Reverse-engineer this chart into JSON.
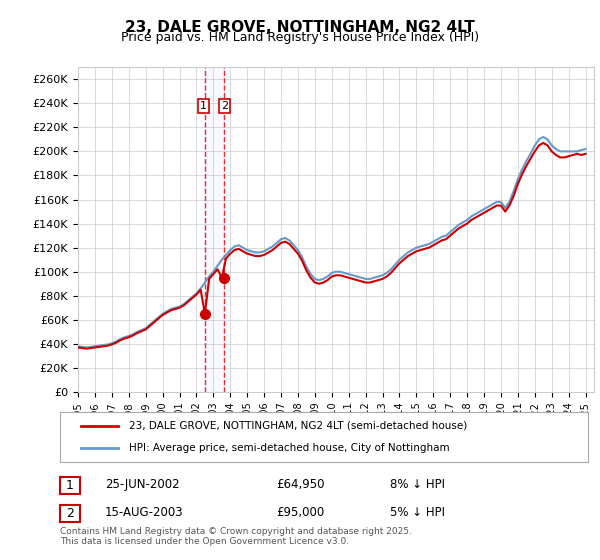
{
  "title": "23, DALE GROVE, NOTTINGHAM, NG2 4LT",
  "subtitle": "Price paid vs. HM Land Registry's House Price Index (HPI)",
  "ylabel_ticks": [
    "£0",
    "£20K",
    "£40K",
    "£60K",
    "£80K",
    "£100K",
    "£120K",
    "£140K",
    "£160K",
    "£180K",
    "£200K",
    "£220K",
    "£240K",
    "£260K"
  ],
  "ylim": [
    0,
    270000
  ],
  "ytick_vals": [
    0,
    20000,
    40000,
    60000,
    80000,
    100000,
    120000,
    140000,
    160000,
    180000,
    200000,
    220000,
    240000,
    260000
  ],
  "x_start_year": 1995,
  "x_end_year": 2025,
  "legend_line1": "23, DALE GROVE, NOTTINGHAM, NG2 4LT (semi-detached house)",
  "legend_line2": "HPI: Average price, semi-detached house, City of Nottingham",
  "sale1_label": "1",
  "sale1_date": "25-JUN-2002",
  "sale1_price": "£64,950",
  "sale1_hpi": "8% ↓ HPI",
  "sale2_label": "2",
  "sale2_date": "15-AUG-2003",
  "sale2_price": "£95,000",
  "sale2_hpi": "5% ↓ HPI",
  "sale1_year": 2002.48,
  "sale1_value": 64950,
  "sale2_year": 2003.62,
  "sale2_value": 95000,
  "vline1_year": 2002.48,
  "vline2_year": 2003.62,
  "line_color_red": "#cc0000",
  "line_color_blue": "#6699cc",
  "bg_color": "#ffffff",
  "grid_color": "#cccccc",
  "footer": "Contains HM Land Registry data © Crown copyright and database right 2025.\nThis data is licensed under the Open Government Licence v3.0.",
  "hpi_data_x": [
    1995.0,
    1995.25,
    1995.5,
    1995.75,
    1996.0,
    1996.25,
    1996.5,
    1996.75,
    1997.0,
    1997.25,
    1997.5,
    1997.75,
    1998.0,
    1998.25,
    1998.5,
    1998.75,
    1999.0,
    1999.25,
    1999.5,
    1999.75,
    2000.0,
    2000.25,
    2000.5,
    2000.75,
    2001.0,
    2001.25,
    2001.5,
    2001.75,
    2002.0,
    2002.25,
    2002.5,
    2002.75,
    2003.0,
    2003.25,
    2003.5,
    2003.75,
    2004.0,
    2004.25,
    2004.5,
    2004.75,
    2005.0,
    2005.25,
    2005.5,
    2005.75,
    2006.0,
    2006.25,
    2006.5,
    2006.75,
    2007.0,
    2007.25,
    2007.5,
    2007.75,
    2008.0,
    2008.25,
    2008.5,
    2008.75,
    2009.0,
    2009.25,
    2009.5,
    2009.75,
    2010.0,
    2010.25,
    2010.5,
    2010.75,
    2011.0,
    2011.25,
    2011.5,
    2011.75,
    2012.0,
    2012.25,
    2012.5,
    2012.75,
    2013.0,
    2013.25,
    2013.5,
    2013.75,
    2014.0,
    2014.25,
    2014.5,
    2014.75,
    2015.0,
    2015.25,
    2015.5,
    2015.75,
    2016.0,
    2016.25,
    2016.5,
    2016.75,
    2017.0,
    2017.25,
    2017.5,
    2017.75,
    2018.0,
    2018.25,
    2018.5,
    2018.75,
    2019.0,
    2019.25,
    2019.5,
    2019.75,
    2020.0,
    2020.25,
    2020.5,
    2020.75,
    2021.0,
    2021.25,
    2021.5,
    2021.75,
    2022.0,
    2022.25,
    2022.5,
    2022.75,
    2023.0,
    2023.25,
    2023.5,
    2023.75,
    2024.0,
    2024.25,
    2024.5,
    2024.75,
    2025.0
  ],
  "hpi_data_y": [
    38000,
    37500,
    37000,
    37500,
    38000,
    38500,
    39000,
    39500,
    40500,
    42000,
    44000,
    45500,
    46500,
    48000,
    50000,
    51500,
    53000,
    56000,
    59000,
    62000,
    65000,
    67000,
    69000,
    70000,
    71000,
    73000,
    76000,
    79000,
    82000,
    86000,
    91000,
    96000,
    100000,
    105000,
    110000,
    114000,
    118000,
    121000,
    122000,
    120000,
    118000,
    117000,
    116000,
    116000,
    117000,
    119000,
    121000,
    124000,
    127000,
    128000,
    126000,
    122000,
    118000,
    112000,
    104000,
    98000,
    94000,
    93000,
    94000,
    96000,
    99000,
    100000,
    100000,
    99000,
    98000,
    97000,
    96000,
    95000,
    94000,
    94000,
    95000,
    96000,
    97000,
    99000,
    102000,
    106000,
    110000,
    113000,
    116000,
    118000,
    120000,
    121000,
    122000,
    123000,
    125000,
    127000,
    129000,
    130000,
    133000,
    136000,
    139000,
    141000,
    143000,
    146000,
    148000,
    150000,
    152000,
    154000,
    156000,
    158000,
    158000,
    153000,
    158000,
    167000,
    177000,
    185000,
    192000,
    198000,
    205000,
    210000,
    212000,
    210000,
    205000,
    202000,
    200000,
    200000,
    200000,
    200000,
    200000,
    201000,
    202000
  ],
  "price_data_x": [
    1995.0,
    1995.25,
    1995.5,
    1995.75,
    1996.0,
    1996.25,
    1996.5,
    1996.75,
    1997.0,
    1997.25,
    1997.5,
    1997.75,
    1998.0,
    1998.25,
    1998.5,
    1998.75,
    1999.0,
    1999.25,
    1999.5,
    1999.75,
    2000.0,
    2000.25,
    2000.5,
    2000.75,
    2001.0,
    2001.25,
    2001.5,
    2001.75,
    2002.0,
    2002.25,
    2002.5,
    2002.75,
    2003.0,
    2003.25,
    2003.5,
    2003.75,
    2004.0,
    2004.25,
    2004.5,
    2004.75,
    2005.0,
    2005.25,
    2005.5,
    2005.75,
    2006.0,
    2006.25,
    2006.5,
    2006.75,
    2007.0,
    2007.25,
    2007.5,
    2007.75,
    2008.0,
    2008.25,
    2008.5,
    2008.75,
    2009.0,
    2009.25,
    2009.5,
    2009.75,
    2010.0,
    2010.25,
    2010.5,
    2010.75,
    2011.0,
    2011.25,
    2011.5,
    2011.75,
    2012.0,
    2012.25,
    2012.5,
    2012.75,
    2013.0,
    2013.25,
    2013.5,
    2013.75,
    2014.0,
    2014.25,
    2014.5,
    2014.75,
    2015.0,
    2015.25,
    2015.5,
    2015.75,
    2016.0,
    2016.25,
    2016.5,
    2016.75,
    2017.0,
    2017.25,
    2017.5,
    2017.75,
    2018.0,
    2018.25,
    2018.5,
    2018.75,
    2019.0,
    2019.25,
    2019.5,
    2019.75,
    2020.0,
    2020.25,
    2020.5,
    2020.75,
    2021.0,
    2021.25,
    2021.5,
    2021.75,
    2022.0,
    2022.25,
    2022.5,
    2022.75,
    2023.0,
    2023.25,
    2023.5,
    2023.75,
    2024.0,
    2024.25,
    2024.5,
    2024.75,
    2025.0
  ],
  "price_data_y": [
    37000,
    36500,
    36000,
    36500,
    37000,
    37500,
    38000,
    38500,
    39500,
    41000,
    43000,
    44500,
    45500,
    47000,
    49000,
    50500,
    52000,
    55000,
    58000,
    61000,
    64000,
    66000,
    68000,
    69000,
    70000,
    72000,
    75000,
    78000,
    81000,
    85000,
    64950,
    94000,
    98000,
    102000,
    95000,
    111000,
    115000,
    118000,
    119000,
    117000,
    115000,
    114000,
    113000,
    113000,
    114000,
    116000,
    118000,
    121000,
    124000,
    125000,
    123000,
    119000,
    115000,
    109000,
    101000,
    95000,
    91000,
    90000,
    91000,
    93000,
    96000,
    97000,
    97000,
    96000,
    95000,
    94000,
    93000,
    92000,
    91000,
    91000,
    92000,
    93000,
    94000,
    96000,
    99000,
    103000,
    107000,
    110000,
    113000,
    115000,
    117000,
    118000,
    119000,
    120000,
    122000,
    124000,
    126000,
    127000,
    130000,
    133000,
    136000,
    138000,
    140000,
    143000,
    145000,
    147000,
    149000,
    151000,
    153000,
    155000,
    155000,
    150000,
    155000,
    163000,
    173000,
    181000,
    188000,
    194000,
    200000,
    205000,
    207000,
    205000,
    200000,
    197000,
    195000,
    195000,
    196000,
    197000,
    198000,
    197000,
    198000
  ]
}
